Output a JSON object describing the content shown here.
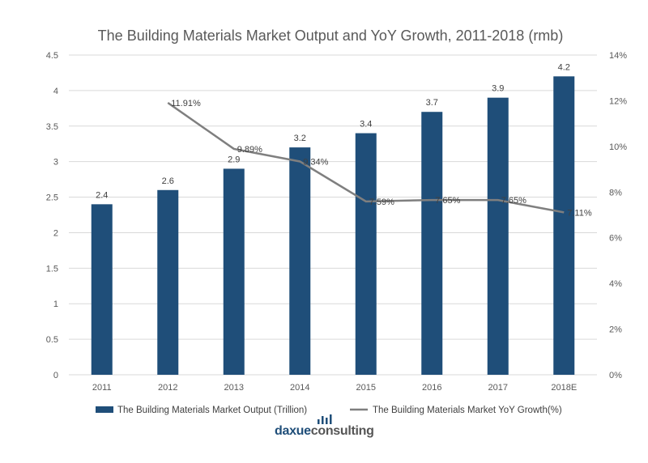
{
  "chart_data": {
    "type": "bar+line",
    "title": "The Building Materials Market Output and YoY Growth, 2011-2018  (rmb)",
    "categories": [
      "2011",
      "2012",
      "2013",
      "2014",
      "2015",
      "2016",
      "2017",
      "2018E"
    ],
    "series": [
      {
        "name": "The Building Materials Market Output (Trillion)",
        "type": "bar",
        "axis": "left",
        "color": "#1f4e79",
        "values": [
          2.4,
          2.6,
          2.9,
          3.2,
          3.4,
          3.7,
          3.9,
          4.2
        ],
        "labels": [
          "2.4",
          "2.6",
          "2.9",
          "3.2",
          "3.4",
          "3.7",
          "3.9",
          "4.2"
        ]
      },
      {
        "name": "The Building Materials Market YoY Growth(%)",
        "type": "line",
        "axis": "right",
        "color": "#7f7f7f",
        "values": [
          null,
          11.91,
          9.89,
          9.34,
          7.59,
          7.65,
          7.65,
          7.11
        ],
        "labels": [
          null,
          "11.91%",
          "9.89%",
          "9.34%",
          "7.59%",
          "7.65%",
          "7.65%",
          "7.11%"
        ]
      }
    ],
    "ylim": [
      0,
      4.5
    ],
    "yticks": [
      "0",
      "0.5",
      "1",
      "1.5",
      "2",
      "2.5",
      "3",
      "3.5",
      "4",
      "4.5"
    ],
    "y2lim": [
      0,
      14
    ],
    "y2ticks": [
      "0%",
      "2%",
      "4%",
      "6%",
      "8%",
      "10%",
      "12%",
      "14%"
    ],
    "grid": true,
    "legend": "bottom"
  },
  "logo": {
    "part1": "daxue",
    "part2": "consulting"
  }
}
